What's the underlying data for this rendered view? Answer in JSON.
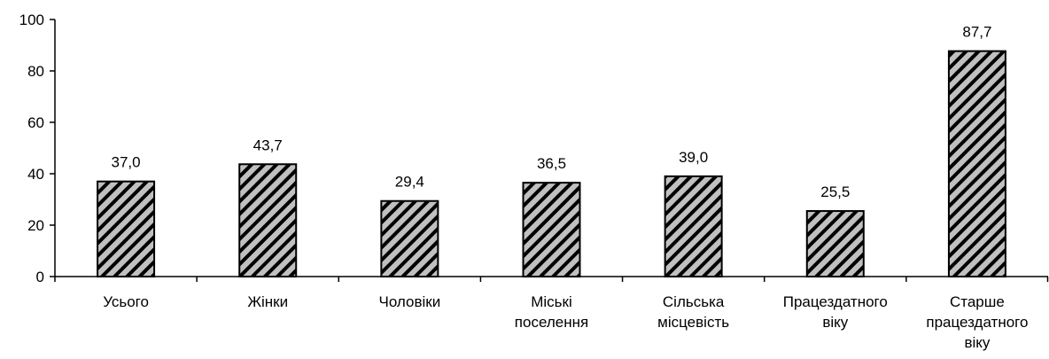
{
  "chart_data": {
    "type": "bar",
    "title": "",
    "xlabel": "",
    "ylabel": "",
    "ylim": [
      0,
      100
    ],
    "yticks": [
      0,
      20,
      40,
      60,
      80,
      100
    ],
    "ytick_labels": [
      "0",
      "20",
      "40",
      "60",
      "80",
      "100"
    ],
    "grid": false,
    "legend": "none",
    "bar_pattern": "diagonal-hatch",
    "colors": {
      "bar_base": "#c0c0c0",
      "hatch": "#000000",
      "axis": "#000000"
    },
    "categories": [
      [
        "Усього"
      ],
      [
        "Жінки"
      ],
      [
        "Чоловіки"
      ],
      [
        "Міські",
        "поселення"
      ],
      [
        "Сільська",
        "місцевість"
      ],
      [
        "Працездатного",
        "віку"
      ],
      [
        "Старше",
        "працездатного",
        "віку"
      ]
    ],
    "values": [
      37.0,
      43.7,
      29.4,
      36.5,
      39.0,
      25.5,
      87.7
    ],
    "data_labels": [
      "37,0",
      "43,7",
      "29,4",
      "36,5",
      "39,0",
      "25,5",
      "87,7"
    ]
  }
}
